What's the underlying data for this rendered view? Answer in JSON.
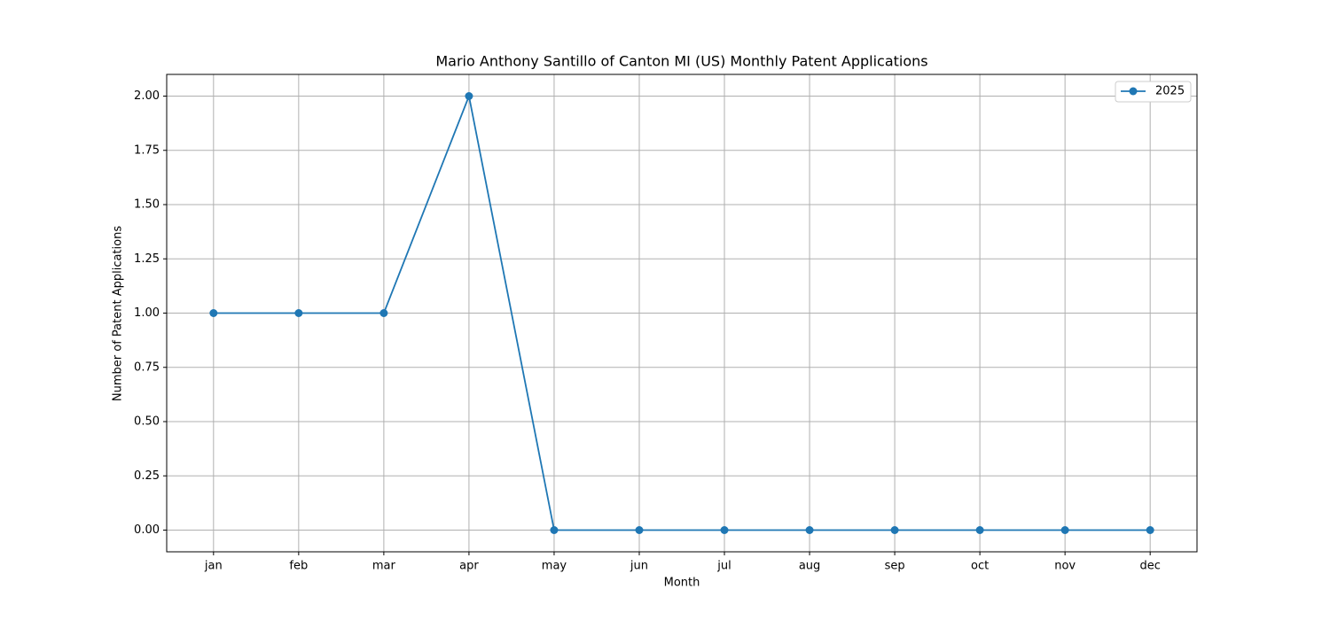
{
  "chart_data": {
    "type": "line",
    "title": "Mario Anthony Santillo of Canton MI (US) Monthly Patent Applications",
    "x_label": "Month",
    "y_label": "Number of Patent Applications",
    "categories": [
      "jan",
      "feb",
      "mar",
      "apr",
      "may",
      "jun",
      "jul",
      "aug",
      "sep",
      "oct",
      "nov",
      "dec"
    ],
    "series": [
      {
        "name": "2025",
        "color": "#1f77b4",
        "values": [
          1,
          1,
          1,
          2,
          0,
          0,
          0,
          0,
          0,
          0,
          0,
          0
        ]
      }
    ],
    "ylim": [
      -0.1,
      2.1
    ],
    "yticks": [
      {
        "value": 0,
        "label": "0.00"
      },
      {
        "value": 0.25,
        "label": "0.25"
      },
      {
        "value": 0.5,
        "label": "0.50"
      },
      {
        "value": 0.75,
        "label": "0.75"
      },
      {
        "value": 1,
        "label": "1.00"
      },
      {
        "value": 1.25,
        "label": "1.25"
      },
      {
        "value": 1.5,
        "label": "1.50"
      },
      {
        "value": 1.75,
        "label": "1.75"
      },
      {
        "value": 2,
        "label": "2.00"
      }
    ],
    "grid": true,
    "legend": "upper right"
  }
}
